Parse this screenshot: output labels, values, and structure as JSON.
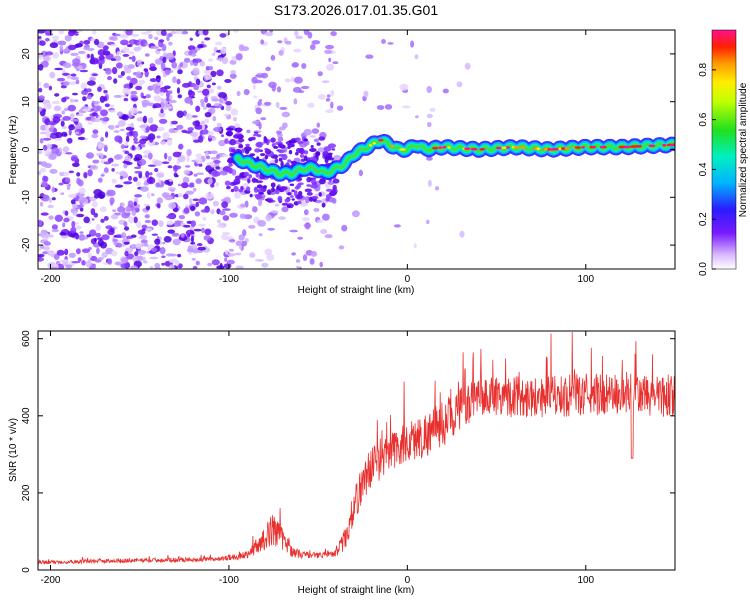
{
  "title": "S173.2026.017.01.35.G01",
  "spectrogram": {
    "type": "heatmap",
    "xlabel": "Height of straight line (km)",
    "ylabel": "Frequency (Hz)",
    "xlim": [
      -207,
      150
    ],
    "ylim": [
      -25,
      25
    ],
    "xticks": [
      -200,
      -100,
      0,
      100
    ],
    "xtick_labels": [
      "-200",
      "-100",
      "0",
      "100"
    ],
    "yticks": [
      -20,
      -10,
      0,
      10,
      20
    ],
    "ytick_labels": [
      "-20",
      "-10",
      "0",
      "10",
      "20"
    ],
    "ridge": {
      "x": [
        -95,
        -88,
        -80,
        -72,
        -65,
        -58,
        -52,
        -46,
        -40,
        -35,
        -30,
        -25,
        -20,
        -15,
        -10,
        -5,
        0,
        5,
        10,
        20,
        40,
        60,
        80,
        100,
        120,
        150
      ],
      "freq": [
        -2,
        -3,
        -4,
        -5,
        -5,
        -4,
        -4,
        -5,
        -4,
        -3,
        -1,
        0,
        1,
        2,
        1,
        0,
        0,
        1,
        0,
        0.5,
        0,
        0.5,
        0,
        0.5,
        0.5,
        1
      ]
    },
    "colorbar": {
      "label": "Normalized spectral amplitude",
      "range": [
        0,
        0.96
      ],
      "ticks": [
        0.0,
        0.2,
        0.4,
        0.6,
        0.8
      ],
      "tick_labels": [
        "0.0",
        "0.2",
        "0.4",
        "0.6",
        "0.8"
      ]
    }
  },
  "snr": {
    "type": "line",
    "xlabel": "Height of straight line (km)",
    "ylabel": "SNR (10 * v/v)",
    "xlim": [
      -207,
      150
    ],
    "ylim": [
      0,
      620
    ],
    "xticks": [
      -200,
      -100,
      0,
      100
    ],
    "xtick_labels": [
      "-200",
      "-100",
      "0",
      "100"
    ],
    "yticks": [
      0,
      200,
      400,
      600
    ],
    "ytick_labels": [
      "0",
      "200",
      "400",
      "600"
    ],
    "color": "#e8302e",
    "envelope": {
      "x": [
        -207,
        -150,
        -105,
        -90,
        -80,
        -75,
        -70,
        -65,
        -60,
        -50,
        -40,
        -35,
        -30,
        -25,
        -20,
        -15,
        -10,
        -5,
        0,
        10,
        20,
        30,
        40,
        50,
        60,
        80,
        100,
        120,
        150
      ],
      "baseline": [
        20,
        25,
        28,
        40,
        80,
        110,
        80,
        50,
        40,
        38,
        45,
        80,
        160,
        230,
        270,
        290,
        300,
        320,
        330,
        350,
        380,
        420,
        445,
        455,
        450,
        450,
        455,
        455,
        450
      ],
      "spread": [
        10,
        10,
        12,
        20,
        60,
        90,
        60,
        30,
        20,
        15,
        20,
        60,
        90,
        100,
        110,
        110,
        110,
        110,
        110,
        120,
        120,
        110,
        100,
        110,
        110,
        110,
        110,
        110,
        110
      ]
    },
    "dip_x": 126,
    "dip_value": 290
  }
}
